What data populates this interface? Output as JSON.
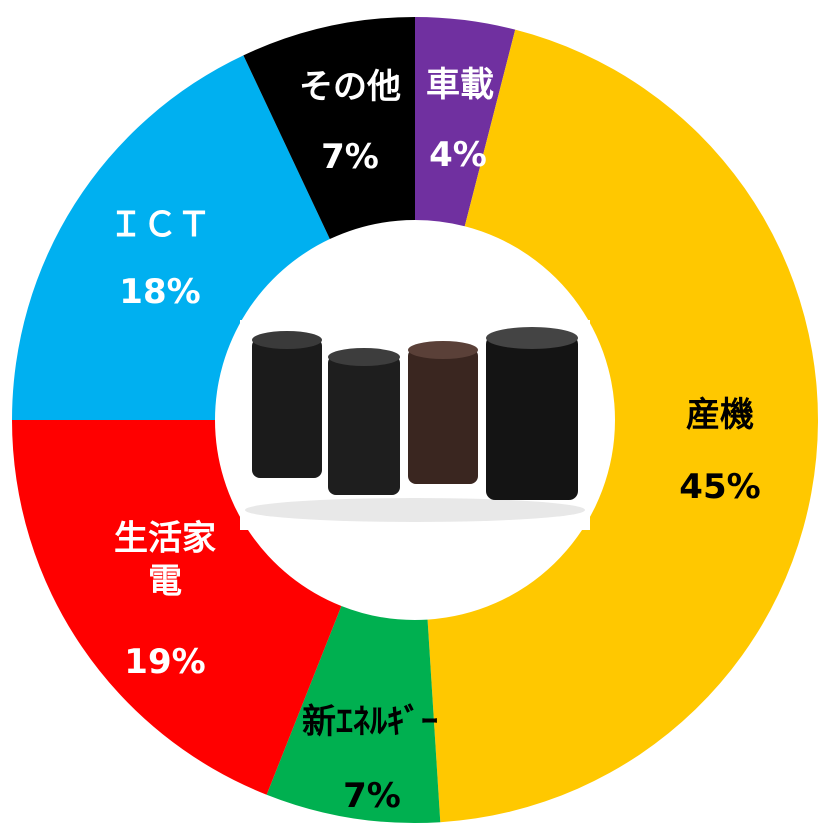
{
  "chart_data": {
    "type": "pie",
    "donut": true,
    "categories": [
      "車載",
      "産機",
      "新ｴﾈﾙｷﾞｰ",
      "生活家電",
      "ＩＣＴ",
      "その他"
    ],
    "values": [
      4,
      45,
      7,
      19,
      18,
      7
    ],
    "value_labels": [
      "4%",
      "45%",
      "7%",
      "19%",
      "18%",
      "7%"
    ],
    "colors": [
      "#7030a0",
      "#ffc800",
      "#00b050",
      "#ff0000",
      "#00b0f0",
      "#000000"
    ],
    "label_colors": [
      "#ffffff",
      "#000000",
      "#000000",
      "#ffffff",
      "#ffffff",
      "#ffffff"
    ]
  }
}
